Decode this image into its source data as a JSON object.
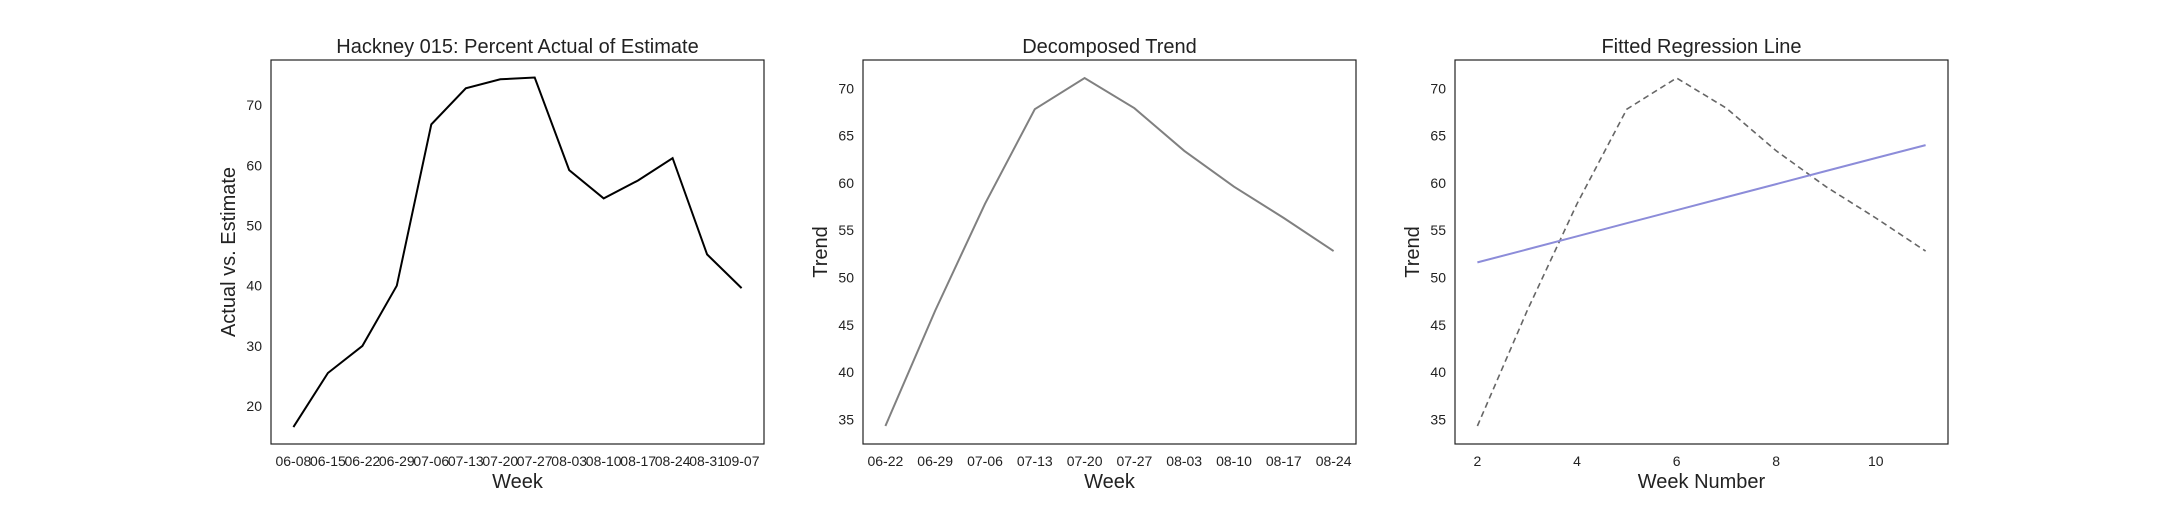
{
  "chart_data": [
    {
      "type": "line",
      "title": "Hackney 015: Percent Actual of Estimate",
      "xlabel": "Week",
      "ylabel": "Actual vs. Estimate",
      "categories": [
        "06-08",
        "06-15",
        "06-22",
        "06-29",
        "07-06",
        "07-13",
        "07-20",
        "07-27",
        "08-03",
        "08-10",
        "08-17",
        "08-24",
        "08-31",
        "09-07"
      ],
      "series": [
        {
          "values": [
            16.5,
            25.5,
            30.0,
            40.0,
            66.8,
            72.8,
            74.3,
            74.6,
            59.2,
            54.5,
            57.5,
            61.2,
            45.2,
            39.6
          ],
          "color": "#000000",
          "dash": "solid"
        }
      ],
      "ylim": [
        13.7,
        77.5
      ],
      "yticks": [
        20,
        30,
        40,
        50,
        60,
        70
      ],
      "grid": false
    },
    {
      "type": "line",
      "title": "Decomposed Trend",
      "xlabel": "Week",
      "ylabel": "Trend",
      "categories": [
        "06-22",
        "06-29",
        "07-06",
        "07-13",
        "07-20",
        "07-27",
        "08-03",
        "08-10",
        "08-17",
        "08-24"
      ],
      "series": [
        {
          "values": [
            34.3,
            46.5,
            57.8,
            67.8,
            71.1,
            67.9,
            63.4,
            59.6,
            56.3,
            52.8
          ],
          "color": "#808080",
          "dash": "solid"
        }
      ],
      "ylim": [
        32.4,
        73.0
      ],
      "yticks": [
        35,
        40,
        45,
        50,
        55,
        60,
        65,
        70
      ],
      "grid": false
    },
    {
      "type": "line",
      "title": "Fitted Regression Line",
      "xlabel": "Week Number",
      "ylabel": "Trend",
      "x": [
        2,
        3,
        4,
        5,
        6,
        7,
        8,
        9,
        10,
        11
      ],
      "series": [
        {
          "values": [
            34.3,
            46.5,
            57.8,
            67.8,
            71.1,
            67.9,
            63.4,
            59.6,
            56.3,
            52.8
          ],
          "color": "#666666",
          "dash": "dashed"
        },
        {
          "values": [
            51.6,
            52.98,
            54.36,
            55.74,
            57.12,
            58.5,
            59.88,
            61.26,
            62.64,
            64.0
          ],
          "color": "#8c8cd9",
          "dash": "solid"
        }
      ],
      "xlim": [
        1.55,
        11.45
      ],
      "xticks": [
        2,
        4,
        6,
        8,
        10
      ],
      "ylim": [
        32.4,
        73.0
      ],
      "yticks": [
        35,
        40,
        45,
        50,
        55,
        60,
        65,
        70
      ],
      "grid": false
    }
  ]
}
